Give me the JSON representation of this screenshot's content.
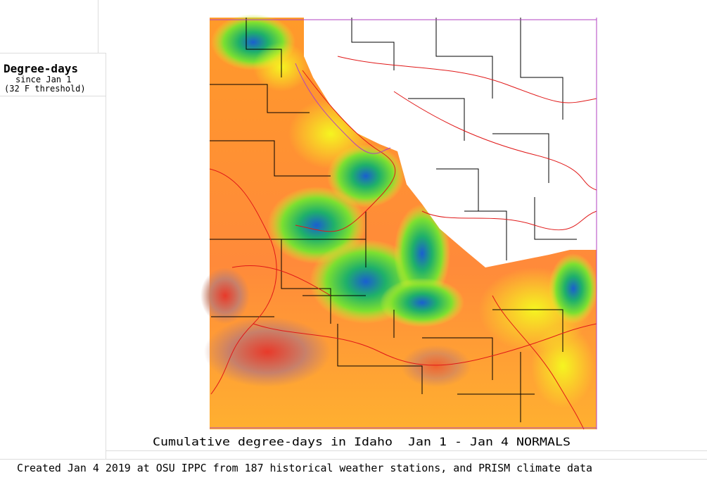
{
  "legend": {
    "title": "Degree-days",
    "subtitle": "since Jan 1",
    "threshold": "(32 F threshold)"
  },
  "map": {
    "caption": "Cumulative degree-days in Idaho  Jan 1 - Jan 4 NORMALS"
  },
  "footer": {
    "credit": "Created Jan 4 2019 at OSU IPPC from 187 historical weather stations, and PRISM climate data"
  }
}
